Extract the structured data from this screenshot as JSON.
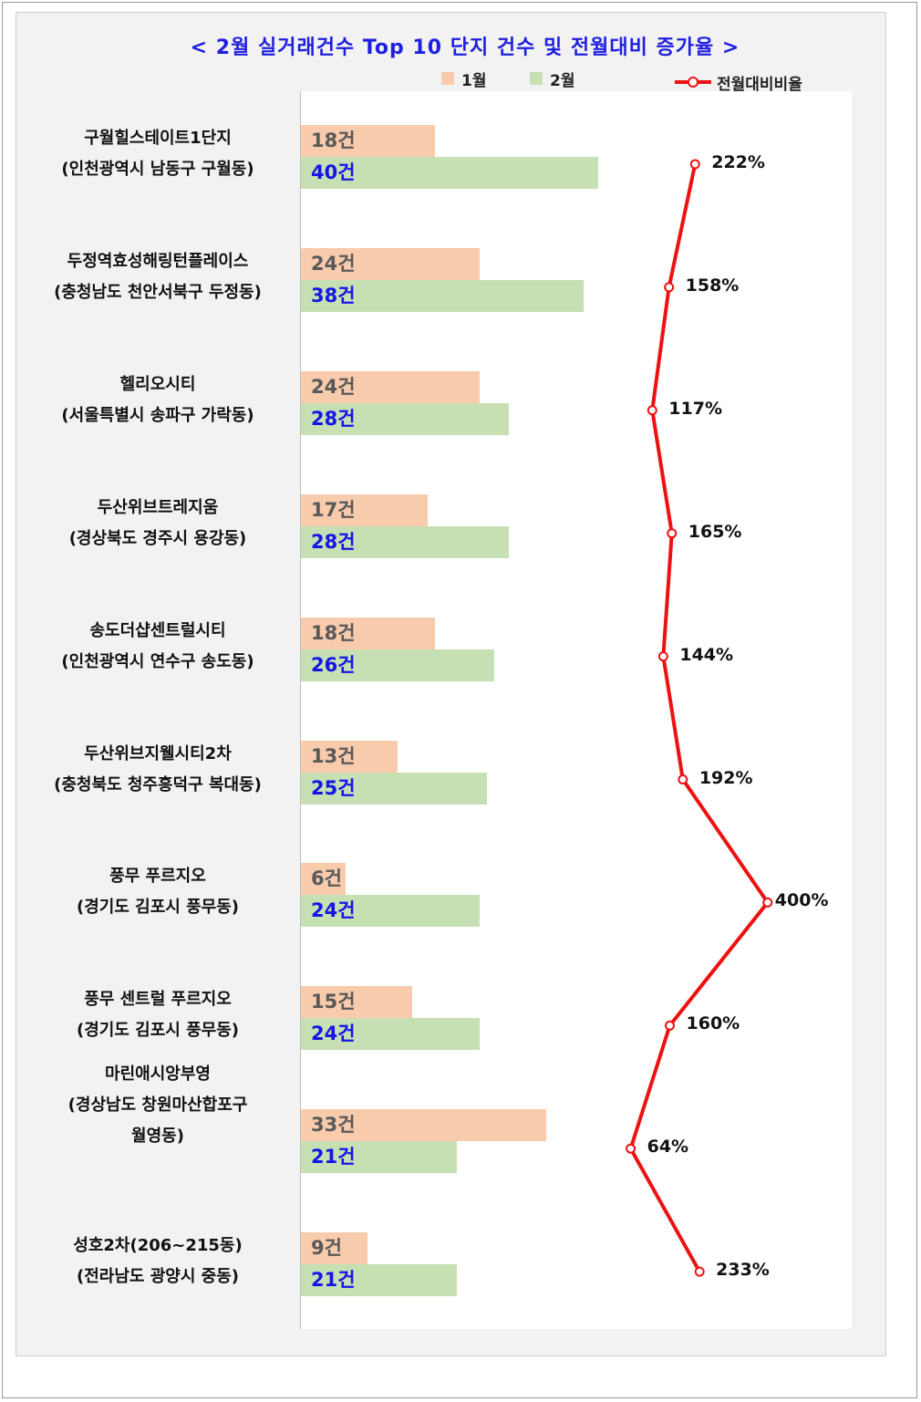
{
  "chart_data": {
    "type": "bar",
    "title": "< 2월 실거래건수 Top 10 단지 건수 및 전월대비 증가율 >",
    "categories": [
      {
        "name": "구월힐스테이트1단지",
        "location": "(인천광역시 남동구 구월동)"
      },
      {
        "name": "두정역효성해링턴플레이스",
        "location": "(충청남도 천안서북구 두정동)"
      },
      {
        "name": "헬리오시티",
        "location": "(서울특별시 송파구 가락동)"
      },
      {
        "name": "두산위브트레지움",
        "location": "(경상북도 경주시 용강동)"
      },
      {
        "name": "송도더샵센트럴시티",
        "location": "(인천광역시 연수구 송도동)"
      },
      {
        "name": "두산위브지웰시티2차",
        "location": "(충청북도 청주흥덕구 복대동)"
      },
      {
        "name": "풍무 푸르지오",
        "location": "(경기도 김포시 풍무동)"
      },
      {
        "name": "풍무 센트럴 푸르지오",
        "location": "(경기도 김포시 풍무동)"
      },
      {
        "name": "마린애시앙부영",
        "location": "(경상남도 창원마산합포구",
        "location2": "월영동)"
      },
      {
        "name": "성호2차(206~215동)",
        "location": "(전라남도 광양시 중동)"
      }
    ],
    "series": [
      {
        "name": "1월",
        "color": "#f8cbad",
        "values": [
          18,
          24,
          24,
          17,
          18,
          13,
          6,
          15,
          33,
          9
        ]
      },
      {
        "name": "2월",
        "color": "#c6e0b4",
        "values": [
          40,
          38,
          28,
          28,
          26,
          25,
          24,
          24,
          21,
          21
        ]
      },
      {
        "name": "전월대비비율",
        "color": "#ee1111",
        "type": "line",
        "values": [
          222,
          158,
          117,
          165,
          144,
          192,
          400,
          160,
          64,
          233
        ]
      }
    ],
    "count_unit": "건",
    "percent_unit": "%",
    "legend": "top"
  }
}
